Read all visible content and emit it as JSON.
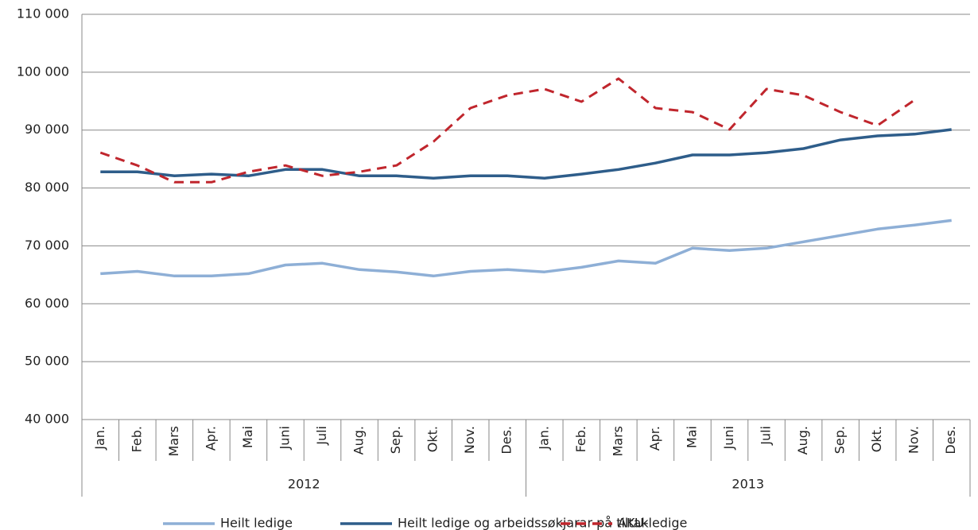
{
  "chart_data": {
    "type": "line",
    "categories": [
      "Jan.",
      "Feb.",
      "Mars",
      "Apr.",
      "Mai",
      "Juni",
      "Juli",
      "Aug.",
      "Sep.",
      "Okt.",
      "Nov.",
      "Des.",
      "Jan.",
      "Feb.",
      "Mars",
      "Apr.",
      "Mai",
      "Juni",
      "Juli",
      "Aug.",
      "Sep.",
      "Okt.",
      "Nov.",
      "Des."
    ],
    "groups": [
      "2012",
      "2013"
    ],
    "series": [
      {
        "name": "Heilt ledige",
        "color": "#8eafd6",
        "dashed": false,
        "values": [
          65200,
          65600,
          64800,
          64800,
          65200,
          66700,
          67000,
          65900,
          65500,
          64800,
          65600,
          65900,
          65500,
          66300,
          67400,
          67000,
          69600,
          69200,
          69600,
          70700,
          71800,
          72900,
          73600,
          74400
        ]
      },
      {
        "name": "Heilt ledige og arbeidssøkjarar på tiltak",
        "color": "#2e5d8a",
        "dashed": false,
        "values": [
          82800,
          82800,
          82100,
          82400,
          82100,
          83200,
          83200,
          82100,
          82100,
          81700,
          82100,
          82100,
          81700,
          82400,
          83200,
          84300,
          85700,
          85700,
          86100,
          86800,
          88300,
          89000,
          89300,
          90100
        ]
      },
      {
        "name": "AKU-ledige",
        "color": "#c0262d",
        "dashed": true,
        "values": [
          86100,
          83900,
          81000,
          81000,
          82800,
          83900,
          82100,
          82800,
          83900,
          88000,
          93800,
          96000,
          97100,
          94900,
          98900,
          93800,
          93100,
          90100,
          97100,
          96000,
          93100,
          90800,
          95200,
          null
        ]
      }
    ],
    "ylim": [
      40000,
      110000
    ],
    "yticks": [
      {
        "value": 40000,
        "label": "40 000"
      },
      {
        "value": 50000,
        "label": "50 000"
      },
      {
        "value": 60000,
        "label": "60 000"
      },
      {
        "value": 70000,
        "label": "70 000"
      },
      {
        "value": 80000,
        "label": "80 000"
      },
      {
        "value": 90000,
        "label": "90 000"
      },
      {
        "value": 100000,
        "label": "100 000"
      },
      {
        "value": 110000,
        "label": "110 000"
      }
    ],
    "grid": true
  }
}
